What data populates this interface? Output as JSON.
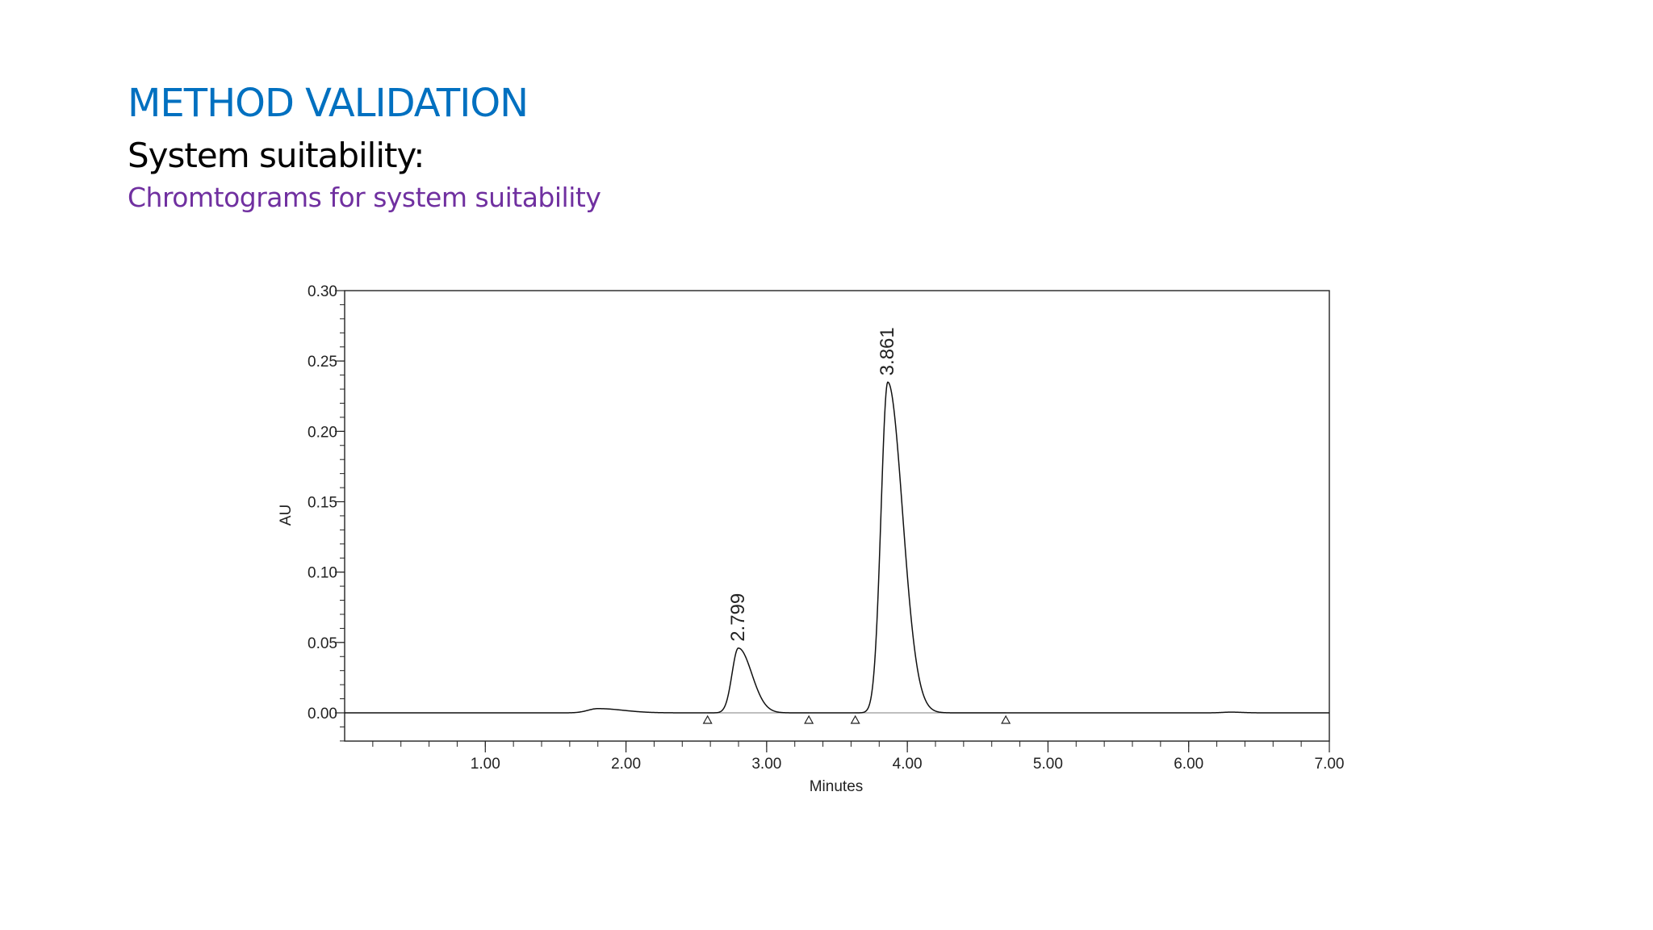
{
  "slide": {
    "title": "METHOD VALIDATION",
    "subtitle": "System suitability:",
    "caption": "Chromtograms for system suitability",
    "title_color": "#0070c0",
    "subtitle_color": "#000000",
    "caption_color": "#7030a0"
  },
  "chart_data": {
    "type": "line",
    "title": "",
    "xlabel": "Minutes",
    "ylabel": "AU",
    "xlim": [
      0,
      7.0
    ],
    "ylim": [
      -0.02,
      0.3
    ],
    "x_ticks": [
      "1.00",
      "2.00",
      "3.00",
      "4.00",
      "5.00",
      "6.00",
      "7.00"
    ],
    "y_ticks": [
      "0.00",
      "0.05",
      "0.10",
      "0.15",
      "0.20",
      "0.25",
      "0.30"
    ],
    "grid": false,
    "line_color": "#111111",
    "baseline_color": "#999999",
    "peaks": [
      {
        "label": "2.799",
        "retention_time": 2.799,
        "height": 0.046
      },
      {
        "label": "3.861",
        "retention_time": 3.861,
        "height": 0.235
      }
    ],
    "minor_peaks": [
      {
        "retention_time": 1.8,
        "height": 0.003
      },
      {
        "retention_time": 6.3,
        "height": 0.0005
      }
    ],
    "integration_markers": [
      2.58,
      3.3,
      3.63,
      4.7
    ]
  }
}
